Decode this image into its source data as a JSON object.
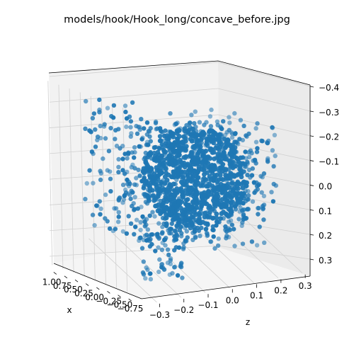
{
  "chart_data": {
    "type": "scatter",
    "projection": "3d",
    "title": "models/hook/Hook_long/concave_before.jpg",
    "xlabel": "x",
    "ylabel": "",
    "zlabel": "z",
    "x_ticks": [
      "1.00",
      "0.75",
      "0.50",
      "0.25",
      "0.00",
      "−0.25",
      "−0.50",
      "−0.75"
    ],
    "z_ticks": [
      "−0.3",
      "−0.2",
      "−0.1",
      "0.0",
      "0.1",
      "0.2",
      "0.3"
    ],
    "y_ticks": [
      "−0.4",
      "−0.3",
      "−0.2",
      "−0.1",
      "0.0",
      "0.1",
      "0.2",
      "0.3"
    ],
    "xlim": [
      -0.8,
      1.05
    ],
    "zlim": [
      -0.36,
      0.36
    ],
    "ylim": [
      -0.42,
      0.35
    ],
    "vertical_axis_inverted": true,
    "grid": true,
    "marker": "circle",
    "series": [
      {
        "color": "#1f77b4",
        "approx_point_count": 3000,
        "points_x_z_y": [
          [
            0.1,
            -0.28,
            -0.33
          ],
          [
            0.05,
            -0.25,
            -0.3
          ],
          [
            0.0,
            -0.22,
            -0.26
          ],
          [
            0.1,
            -0.05,
            -0.32
          ],
          [
            0.05,
            0.0,
            -0.3
          ],
          [
            0.0,
            0.1,
            -0.22
          ],
          [
            -0.05,
            0.25,
            -0.15
          ],
          [
            0.0,
            0.28,
            -0.05
          ],
          [
            -0.1,
            0.3,
            0.05
          ],
          [
            0.1,
            -0.3,
            0.0
          ],
          [
            0.05,
            -0.28,
            0.1
          ],
          [
            0.0,
            -0.2,
            0.22
          ],
          [
            -0.1,
            -0.1,
            0.3
          ],
          [
            -0.05,
            0.0,
            0.25
          ],
          [
            0.05,
            0.1,
            0.2
          ],
          [
            0.0,
            0.0,
            0.0
          ],
          [
            0.1,
            0.05,
            -0.05
          ],
          [
            -0.1,
            -0.05,
            0.05
          ],
          [
            0.2,
            0.1,
            0.1
          ],
          [
            -0.2,
            -0.1,
            -0.1
          ]
        ]
      }
    ]
  }
}
